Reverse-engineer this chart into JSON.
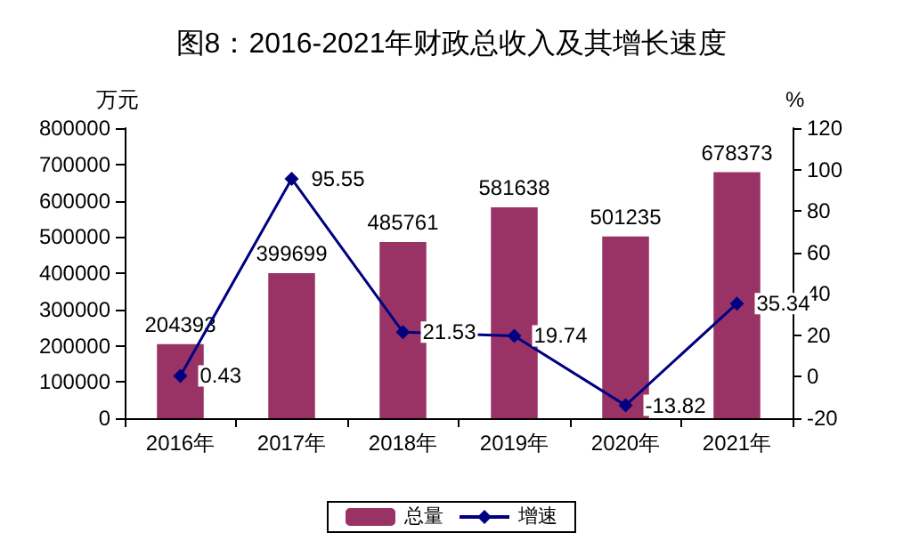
{
  "chart_data": {
    "type": "bar",
    "title": "图8：2016-2021年财政总收入及其增长速度",
    "ylabel": "万元",
    "y2label": "%",
    "categories": [
      "2016年",
      "2017年",
      "2018年",
      "2019年",
      "2020年",
      "2021年"
    ],
    "series": [
      {
        "name": "总量",
        "color": "#993366",
        "values": [
          204393,
          399699,
          485761,
          581638,
          501235,
          678373
        ]
      },
      {
        "name": "增速",
        "type": "line",
        "axis": "y2",
        "color": "#000080",
        "marker": "diamond",
        "values": [
          0.43,
          95.55,
          21.53,
          19.74,
          -13.82,
          35.34
        ]
      }
    ],
    "ylim": [
      0,
      800000
    ],
    "yticks": [
      0,
      100000,
      200000,
      300000,
      400000,
      500000,
      600000,
      700000,
      800000
    ],
    "y2lim": [
      -20,
      120
    ],
    "y2ticks": [
      -20,
      0,
      20,
      40,
      60,
      80,
      100,
      120
    ],
    "data_labels": true,
    "grid": false,
    "legend": "bottom"
  }
}
